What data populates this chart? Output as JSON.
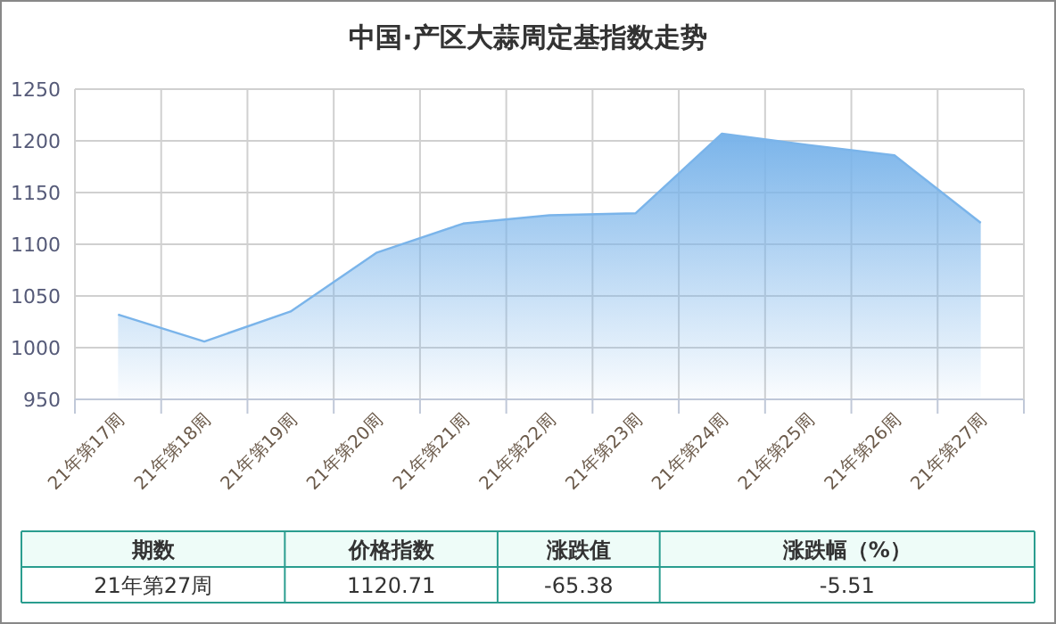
{
  "chart_data": {
    "type": "area",
    "title": "中国·产区大蒜周定基指数走势",
    "categories": [
      "21年第17周",
      "21年第18周",
      "21年第19周",
      "21年第20周",
      "21年第21周",
      "21年第22周",
      "21年第23周",
      "21年第24周",
      "21年第25周",
      "21年第26周",
      "21年第27周"
    ],
    "series": [
      {
        "color": "#7ab4ea",
        "values": [
          1032,
          1006,
          1035,
          1092,
          1120,
          1128,
          1130,
          1207,
          1196,
          1186,
          1120.71
        ]
      }
    ],
    "ylim": [
      950,
      1250
    ],
    "yticks": [
      950,
      1000,
      1050,
      1100,
      1150,
      1200,
      1250
    ],
    "grid": true,
    "annotations": [
      "期数",
      "价格指数",
      "涨跌值",
      "涨跌幅（%）",
      "21年第27周",
      "1120.71",
      "-65.38",
      "-5.51"
    ]
  }
}
